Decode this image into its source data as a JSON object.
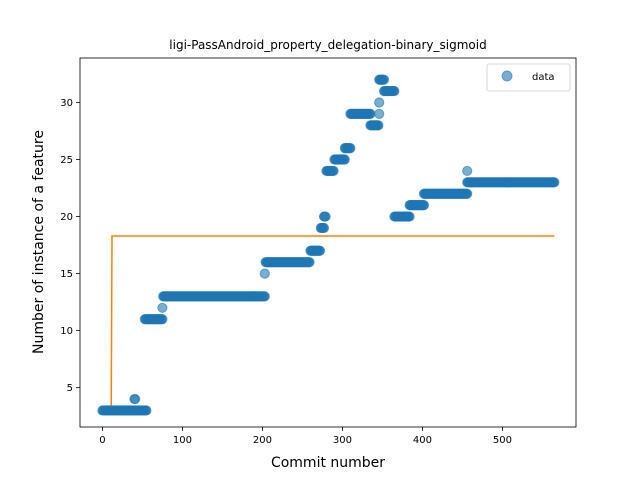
{
  "chart_data": {
    "type": "scatter",
    "title": "ligi-PassAndroid_property_delegation-binary_sigmoid",
    "xlabel": "Commit number",
    "ylabel": "Number of instance of a feature",
    "xlim": [
      -28,
      592
    ],
    "ylim": [
      1.55,
      33.9
    ],
    "xticks": [
      0,
      100,
      200,
      300,
      400,
      500
    ],
    "yticks": [
      5,
      10,
      15,
      20,
      25,
      30
    ],
    "grid": false,
    "legend": {
      "position": "top-right",
      "entries": [
        "data"
      ]
    },
    "colors": {
      "data": "#1f77b4",
      "fit": "#ff7f0e"
    },
    "series": [
      {
        "name": "data",
        "kind": "scatter",
        "segments": [
          {
            "x_start": 0,
            "x_end": 55,
            "y": 3
          },
          {
            "x": 40,
            "y": 4
          },
          {
            "x": 41,
            "y": 4
          },
          {
            "x_start": 53,
            "x_end": 75,
            "y": 11
          },
          {
            "x": 75,
            "y": 12
          },
          {
            "x_start": 76,
            "x_end": 203,
            "y": 13
          },
          {
            "x": 203,
            "y": 15
          },
          {
            "x_start": 204,
            "x_end": 259,
            "y": 16
          },
          {
            "x_start": 260,
            "x_end": 272,
            "y": 17
          },
          {
            "x_start": 273,
            "x_end": 277,
            "y": 19
          },
          {
            "x_start": 277,
            "x_end": 279,
            "y": 20
          },
          {
            "x_start": 280,
            "x_end": 289,
            "y": 24
          },
          {
            "x_start": 290,
            "x_end": 303,
            "y": 25
          },
          {
            "x_start": 303,
            "x_end": 310,
            "y": 26
          },
          {
            "x_start": 310,
            "x_end": 335,
            "y": 29
          },
          {
            "x_start": 335,
            "x_end": 345,
            "y": 28
          },
          {
            "x": 346,
            "y": 29
          },
          {
            "x": 346,
            "y": 30
          },
          {
            "x_start": 346,
            "x_end": 352,
            "y": 32
          },
          {
            "x_start": 352,
            "x_end": 365,
            "y": 31
          },
          {
            "x_start": 365,
            "x_end": 384,
            "y": 20
          },
          {
            "x_start": 384,
            "x_end": 402,
            "y": 21
          },
          {
            "x_start": 402,
            "x_end": 456,
            "y": 22
          },
          {
            "x": 456,
            "y": 24
          },
          {
            "x_start": 456,
            "x_end": 565,
            "y": 23
          }
        ]
      },
      {
        "name": "",
        "kind": "line",
        "x": [
          0,
          11,
          12,
          565
        ],
        "y": [
          3.0,
          3.0,
          18.3,
          18.3
        ]
      }
    ]
  }
}
